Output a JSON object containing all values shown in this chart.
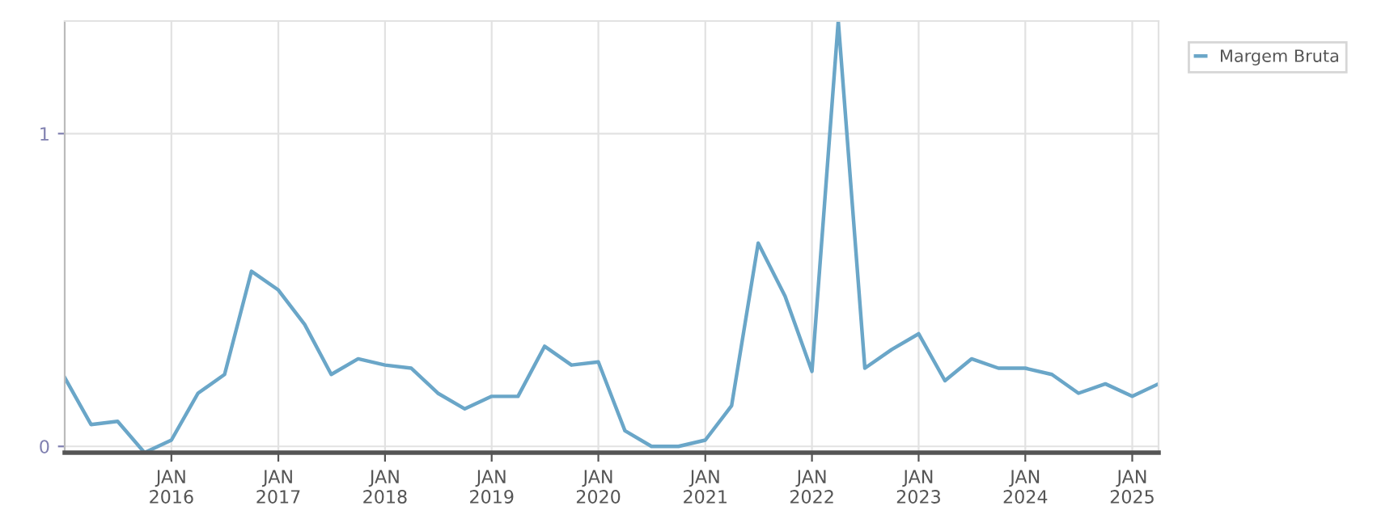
{
  "chart_data": {
    "type": "line",
    "x": [
      "2015-01",
      "2015-04",
      "2015-07",
      "2015-10",
      "2016-01",
      "2016-04",
      "2016-07",
      "2016-10",
      "2017-01",
      "2017-04",
      "2017-07",
      "2017-10",
      "2018-01",
      "2018-04",
      "2018-07",
      "2018-10",
      "2019-01",
      "2019-04",
      "2019-07",
      "2019-10",
      "2020-01",
      "2020-04",
      "2020-07",
      "2020-10",
      "2021-01",
      "2021-04",
      "2021-07",
      "2021-10",
      "2022-01",
      "2022-04",
      "2022-07",
      "2022-10",
      "2023-01",
      "2023-04",
      "2023-07",
      "2023-10",
      "2024-01",
      "2024-04",
      "2024-07",
      "2024-10",
      "2025-01",
      "2025-04"
    ],
    "series": [
      {
        "name": "Margem Bruta",
        "color": "#6aa6c8",
        "values": [
          0.22,
          0.07,
          0.08,
          -0.02,
          0.02,
          0.17,
          0.23,
          0.56,
          0.5,
          0.39,
          0.23,
          0.28,
          0.26,
          0.25,
          0.17,
          0.12,
          0.16,
          0.16,
          0.32,
          0.26,
          0.27,
          0.05,
          0.0,
          0.0,
          0.02,
          0.13,
          0.65,
          0.48,
          0.24,
          1.36,
          0.25,
          0.31,
          0.36,
          0.21,
          0.28,
          0.25,
          0.25,
          0.23,
          0.17,
          0.2,
          0.16,
          0.2
        ]
      }
    ],
    "xlim": [
      "2015-01",
      "2025-04"
    ],
    "ylim": [
      -0.02,
      1.36
    ],
    "xticks": [
      {
        "value": "2016-01",
        "label": "JAN\n2016"
      },
      {
        "value": "2017-01",
        "label": "JAN\n2017"
      },
      {
        "value": "2018-01",
        "label": "JAN\n2018"
      },
      {
        "value": "2019-01",
        "label": "JAN\n2019"
      },
      {
        "value": "2020-01",
        "label": "JAN\n2020"
      },
      {
        "value": "2021-01",
        "label": "JAN\n2021"
      },
      {
        "value": "2022-01",
        "label": "JAN\n2022"
      },
      {
        "value": "2023-01",
        "label": "JAN\n2023"
      },
      {
        "value": "2024-01",
        "label": "JAN\n2024"
      },
      {
        "value": "2025-01",
        "label": "JAN\n2025"
      }
    ],
    "yticks": [
      0,
      1
    ],
    "grid": true,
    "legend": "top right",
    "marker": "none",
    "line_style": "solid"
  }
}
